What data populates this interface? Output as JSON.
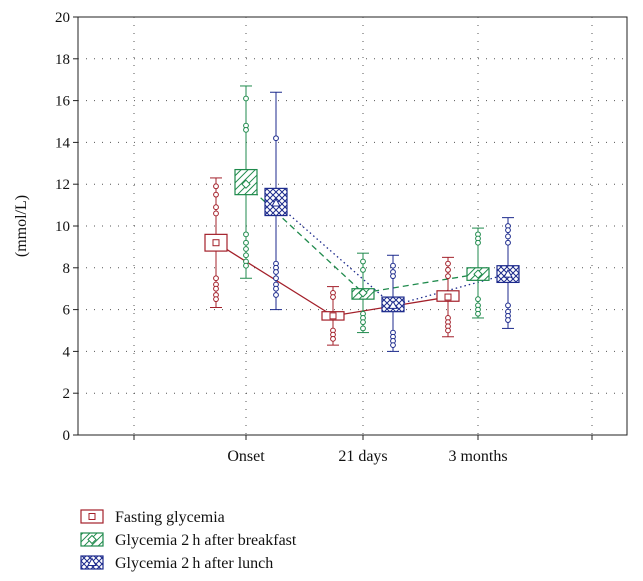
{
  "chart_data": {
    "type": "box",
    "ylabel": "(mmol/L)",
    "ylim": [
      0,
      20
    ],
    "yticks": [
      0,
      2,
      4,
      6,
      8,
      10,
      12,
      14,
      16,
      18,
      20
    ],
    "categories": [
      "Onset",
      "21 days",
      "3 months"
    ],
    "grid": "dotted horizontal",
    "legend_position": "bottom-left",
    "series": [
      {
        "name": "Fasting glycemia",
        "color": "#a3202a",
        "marker": "square",
        "fill": "none",
        "line_style": "solid",
        "boxes": [
          {
            "mean": 9.2,
            "q1": 8.8,
            "q3": 9.6,
            "min": 6.1,
            "max": 12.3,
            "points": [
              11.9,
              11.5,
              10.9,
              10.6,
              7.5,
              7.2,
              7.0,
              6.7,
              6.5
            ]
          },
          {
            "mean": 5.7,
            "q1": 5.5,
            "q3": 5.9,
            "min": 4.3,
            "max": 7.1,
            "points": [
              6.8,
              6.6,
              5.0,
              4.8,
              4.6
            ]
          },
          {
            "mean": 6.6,
            "q1": 6.4,
            "q3": 6.9,
            "min": 4.7,
            "max": 8.5,
            "points": [
              8.2,
              7.9,
              7.6,
              5.6,
              5.4,
              5.2,
              5.0
            ]
          }
        ]
      },
      {
        "name": "Glycemia 2 h after breakfast",
        "color": "#1f8a4c",
        "marker": "diamond",
        "fill": "hatch",
        "line_style": "dashed",
        "boxes": [
          {
            "mean": 12.0,
            "q1": 11.5,
            "q3": 12.7,
            "min": 7.5,
            "max": 16.7,
            "points": [
              16.1,
              14.8,
              14.6,
              9.6,
              9.2,
              8.9,
              8.6,
              8.3,
              8.1
            ]
          },
          {
            "mean": 6.8,
            "q1": 6.5,
            "q3": 7.0,
            "min": 4.9,
            "max": 8.7,
            "points": [
              8.3,
              7.9,
              5.8,
              5.6,
              5.4,
              5.1
            ]
          },
          {
            "mean": 7.7,
            "q1": 7.4,
            "q3": 8.0,
            "min": 5.6,
            "max": 9.9,
            "points": [
              9.6,
              9.4,
              9.2,
              6.5,
              6.2,
              6.0,
              5.8
            ]
          }
        ]
      },
      {
        "name": "Glycemia 2 h after lunch",
        "color": "#1c2a8c",
        "marker": "triangle",
        "fill": "crosshatch",
        "line_style": "dotted",
        "boxes": [
          {
            "mean": 11.1,
            "q1": 10.5,
            "q3": 11.8,
            "min": 6.0,
            "max": 16.4,
            "points": [
              14.2,
              8.2,
              8.0,
              7.8,
              7.5,
              7.2,
              7.0,
              6.7
            ]
          },
          {
            "mean": 6.2,
            "q1": 5.9,
            "q3": 6.6,
            "min": 4.0,
            "max": 8.6,
            "points": [
              8.1,
              7.8,
              7.6,
              4.9,
              4.7,
              4.5,
              4.3
            ]
          },
          {
            "mean": 7.7,
            "q1": 7.3,
            "q3": 8.1,
            "min": 5.1,
            "max": 10.4,
            "points": [
              10.0,
              9.8,
              9.5,
              9.2,
              6.2,
              5.9,
              5.7,
              5.5
            ]
          }
        ]
      }
    ]
  }
}
